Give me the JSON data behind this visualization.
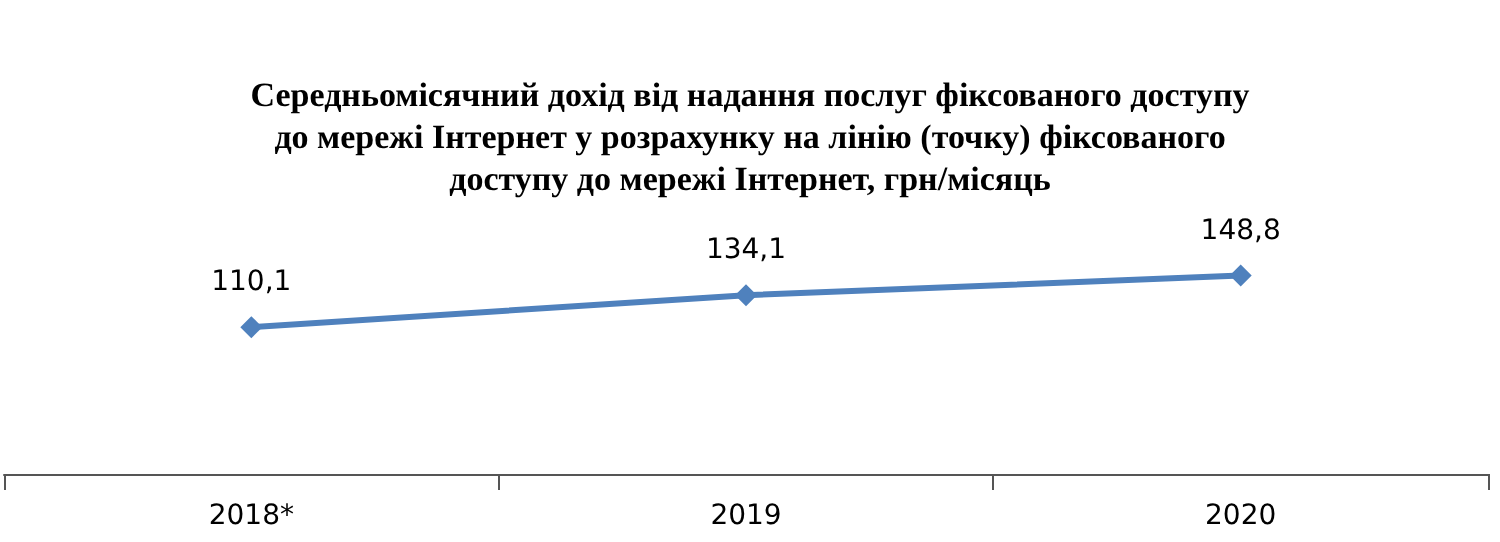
{
  "chart_data": {
    "type": "line",
    "title": "Середньомісячний дохід від надання послуг фіксованого доступу\nдо мережі Інтернет у розрахунку на лінію (точку) фіксованого\nдоступу до мережі Інтернет, грн/місяць",
    "categories": [
      "2018*",
      "2019",
      "2020"
    ],
    "series": [
      {
        "color": "#4f81bd",
        "values": [
          110.1,
          134.1,
          148.8
        ],
        "value_labels": [
          "110,1",
          "134,1",
          "148,8"
        ]
      }
    ],
    "tick_labels": "x",
    "marker": "diamond",
    "line_style": "solid",
    "grid": false
  }
}
